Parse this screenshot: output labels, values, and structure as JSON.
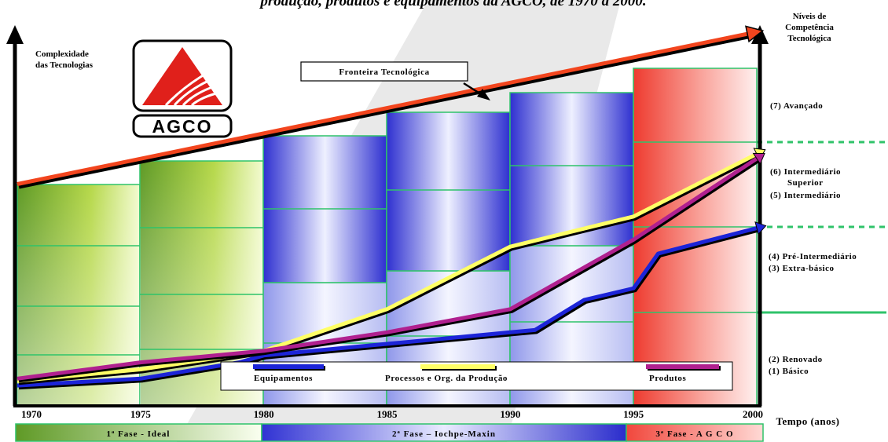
{
  "title_fragment": "produção, produtos e equipamentos da AGCO, de 1970 a 2000.",
  "logo": {
    "text": "AGCO",
    "color": "#e0201b"
  },
  "left_axis_label": [
    "Complexidade",
    "das Tecnologias"
  ],
  "right_axis_label": [
    "Níveis de",
    "Competência",
    "Tecnológica"
  ],
  "x_axis_label": "Tempo (anos)",
  "frontier_label": "Fronteira Tecnológica",
  "levels": [
    {
      "lines": [
        "(7) Avançado"
      ]
    },
    {
      "lines": [
        "(6) Intermediário",
        "Superior",
        "(5) Intermediário"
      ]
    },
    {
      "lines": [
        "(4) Pré-Intermediário",
        "(3) Extra-básico"
      ]
    },
    {
      "lines": [
        "(2) Renovado",
        "(1) Básico"
      ]
    }
  ],
  "phases": [
    {
      "label": "1ª Fase - Ideal",
      "color": "#6aa82a"
    },
    {
      "label": "2ª Fase – Iochpe-Maxin",
      "color": "#2d2fcf"
    },
    {
      "label": "3ª Fase - A G C O",
      "color": "#ee4036"
    }
  ],
  "chart_data": {
    "type": "line",
    "x_ticks": [
      "1970",
      "1975",
      "1980",
      "1985",
      "1990",
      "1995",
      "2000"
    ],
    "series": [
      {
        "name": "Equipamentos",
        "color": "#1c24d8",
        "points": [
          [
            1970,
            0.3
          ],
          [
            1975,
            0.6
          ],
          [
            1979,
            1.3
          ],
          [
            1980,
            1.6
          ],
          [
            1985,
            2.1
          ],
          [
            1990,
            2.6
          ],
          [
            1991,
            2.7
          ],
          [
            1993,
            4.0
          ],
          [
            1995,
            4.5
          ],
          [
            1996,
            6.0
          ],
          [
            2000,
            7.1
          ]
        ]
      },
      {
        "name": "Processos e Org. da Produção",
        "color": "#ffff66",
        "points": [
          [
            1970,
            0.5
          ],
          [
            1975,
            1.0
          ],
          [
            1980,
            1.8
          ],
          [
            1985,
            3.6
          ],
          [
            1990,
            6.3
          ],
          [
            1995,
            7.6
          ],
          [
            2000,
            10.3
          ]
        ]
      },
      {
        "name": "Produtos",
        "color": "#b0208f",
        "points": [
          [
            1970,
            0.6
          ],
          [
            1975,
            1.3
          ],
          [
            1980,
            1.8
          ],
          [
            1985,
            2.6
          ],
          [
            1990,
            3.6
          ],
          [
            1995,
            6.6
          ],
          [
            2000,
            10.1
          ]
        ]
      }
    ],
    "frontier_points": [
      [
        1970,
        9.0
      ],
      [
        2000,
        15.5
      ]
    ]
  }
}
